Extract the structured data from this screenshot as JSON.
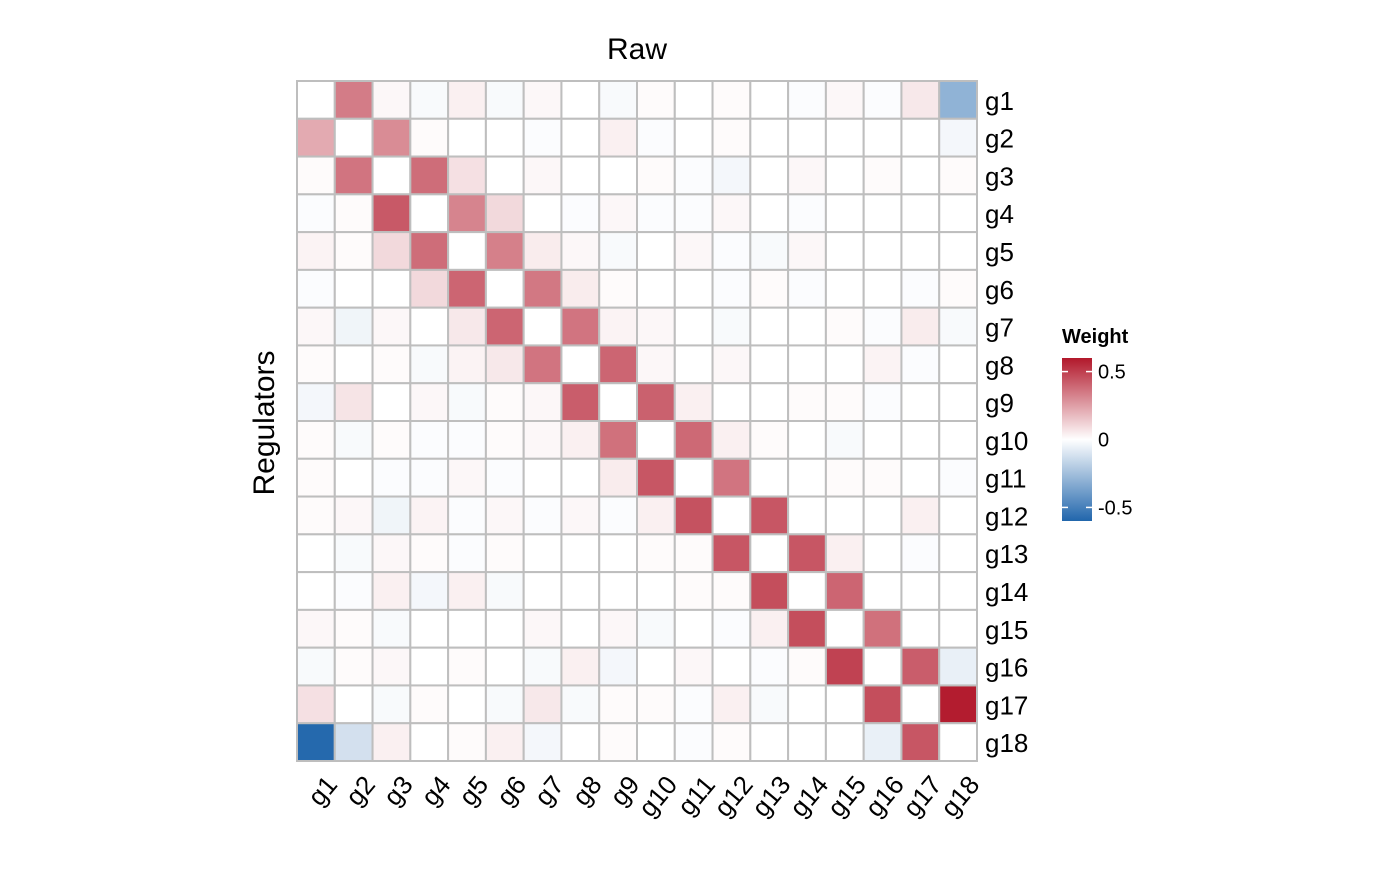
{
  "chart_data": {
    "type": "heatmap",
    "title": "Raw",
    "xlabel": "",
    "ylabel": "Regulators",
    "rows": [
      "g1",
      "g2",
      "g3",
      "g4",
      "g5",
      "g6",
      "g7",
      "g8",
      "g9",
      "g10",
      "g11",
      "g12",
      "g13",
      "g14",
      "g15",
      "g16",
      "g17",
      "g18"
    ],
    "cols": [
      "g1",
      "g2",
      "g3",
      "g4",
      "g5",
      "g6",
      "g7",
      "g8",
      "g9",
      "g10",
      "g11",
      "g12",
      "g13",
      "g14",
      "g15",
      "g16",
      "g17",
      "g18"
    ],
    "values": [
      [
        0,
        0.34,
        0.02,
        -0.02,
        0.04,
        -0.02,
        0.02,
        0,
        -0.02,
        0.01,
        0,
        0.01,
        0,
        -0.01,
        0.02,
        -0.01,
        0.06,
        -0.3
      ],
      [
        0.22,
        0,
        0.3,
        0.01,
        0,
        0,
        -0.01,
        0,
        0.04,
        -0.01,
        0,
        0.01,
        0,
        0,
        0,
        0,
        0,
        -0.03
      ],
      [
        0.01,
        0.36,
        0,
        0.38,
        0.08,
        0,
        0.02,
        0,
        0,
        0.01,
        -0.01,
        -0.03,
        0,
        0.02,
        0,
        0.01,
        0,
        0.01
      ],
      [
        -0.01,
        0.01,
        0.43,
        0,
        0.32,
        0.1,
        0,
        -0.01,
        0.02,
        -0.01,
        -0.01,
        0.02,
        0,
        -0.01,
        0,
        0,
        0,
        0
      ],
      [
        0.03,
        0.01,
        0.1,
        0.38,
        0,
        0.33,
        0.05,
        0.02,
        -0.02,
        0,
        0.02,
        -0.01,
        -0.02,
        0.02,
        0,
        0,
        0,
        0
      ],
      [
        -0.01,
        0,
        0,
        0.1,
        0.4,
        0,
        0.35,
        0.05,
        0.01,
        0,
        0,
        -0.01,
        0.01,
        -0.01,
        0,
        0,
        -0.01,
        0.01
      ],
      [
        0.02,
        -0.04,
        0.02,
        0,
        0.06,
        0.4,
        0,
        0.36,
        0.03,
        0.02,
        0,
        -0.02,
        0,
        0,
        0.01,
        -0.01,
        0.05,
        -0.02
      ],
      [
        0.01,
        0,
        0.01,
        -0.02,
        0.03,
        0.06,
        0.36,
        0,
        0.4,
        0.02,
        0,
        0.02,
        0,
        0,
        0,
        0.03,
        -0.01,
        0
      ],
      [
        -0.03,
        0.07,
        0,
        0.02,
        -0.02,
        0.01,
        0.02,
        0.42,
        0,
        0.41,
        0.04,
        0,
        0,
        0.01,
        0.01,
        -0.01,
        0,
        0
      ],
      [
        0.01,
        -0.02,
        0.01,
        -0.01,
        -0.01,
        0.01,
        0.02,
        0.04,
        0.37,
        0,
        0.39,
        0.04,
        0.01,
        0,
        -0.02,
        0,
        0,
        0
      ],
      [
        0.01,
        0,
        -0.01,
        -0.01,
        0.02,
        -0.01,
        0,
        0,
        0.05,
        0.44,
        0,
        0.36,
        0,
        0,
        0.01,
        0.01,
        0,
        -0.01
      ],
      [
        0.01,
        0.02,
        -0.04,
        0.03,
        -0.01,
        0.02,
        -0.01,
        0.02,
        -0.01,
        0.04,
        0.45,
        0,
        0.44,
        0,
        0,
        0,
        0.04,
        0
      ],
      [
        0,
        -0.02,
        0.02,
        0.01,
        -0.01,
        0.01,
        0,
        0,
        0,
        0.01,
        0.01,
        0.44,
        0,
        0.44,
        0.04,
        0,
        -0.01,
        0
      ],
      [
        0,
        -0.01,
        0.04,
        -0.03,
        0.04,
        -0.02,
        0,
        0,
        0,
        0,
        0.01,
        0.01,
        0.46,
        0,
        0.4,
        0,
        0,
        0
      ],
      [
        0.02,
        0.01,
        -0.02,
        0,
        0,
        0,
        0.02,
        0,
        0.02,
        -0.02,
        0,
        -0.01,
        0.04,
        0.46,
        0,
        0.37,
        0,
        0
      ],
      [
        -0.02,
        0.01,
        0.02,
        0,
        0.01,
        0,
        -0.02,
        0.04,
        -0.03,
        0,
        0.02,
        0,
        -0.01,
        0.01,
        0.49,
        0,
        0.42,
        -0.06
      ],
      [
        0.08,
        0,
        -0.02,
        0.01,
        0,
        -0.02,
        0.06,
        -0.02,
        0.01,
        0.01,
        -0.01,
        0.04,
        -0.02,
        0,
        0,
        0.46,
        0,
        0.59
      ],
      [
        -0.59,
        -0.12,
        0.04,
        0,
        0.01,
        0.04,
        -0.03,
        0,
        0.01,
        0,
        -0.01,
        0.01,
        0,
        0,
        0,
        -0.06,
        0.44,
        0
      ]
    ],
    "colorscale": {
      "low": "#2166AC",
      "mid": "#FFFFFF",
      "high": "#B2182B"
    },
    "cell_border_color": "#BEBEBE",
    "legend": {
      "title": "Weight",
      "position": "right",
      "ticks": [
        {
          "value": 0.5,
          "label": "0.5"
        },
        {
          "value": 0,
          "label": "0"
        },
        {
          "value": -0.5,
          "label": "-0.5"
        }
      ],
      "range": [
        -0.6,
        0.6
      ]
    },
    "grid": false
  }
}
